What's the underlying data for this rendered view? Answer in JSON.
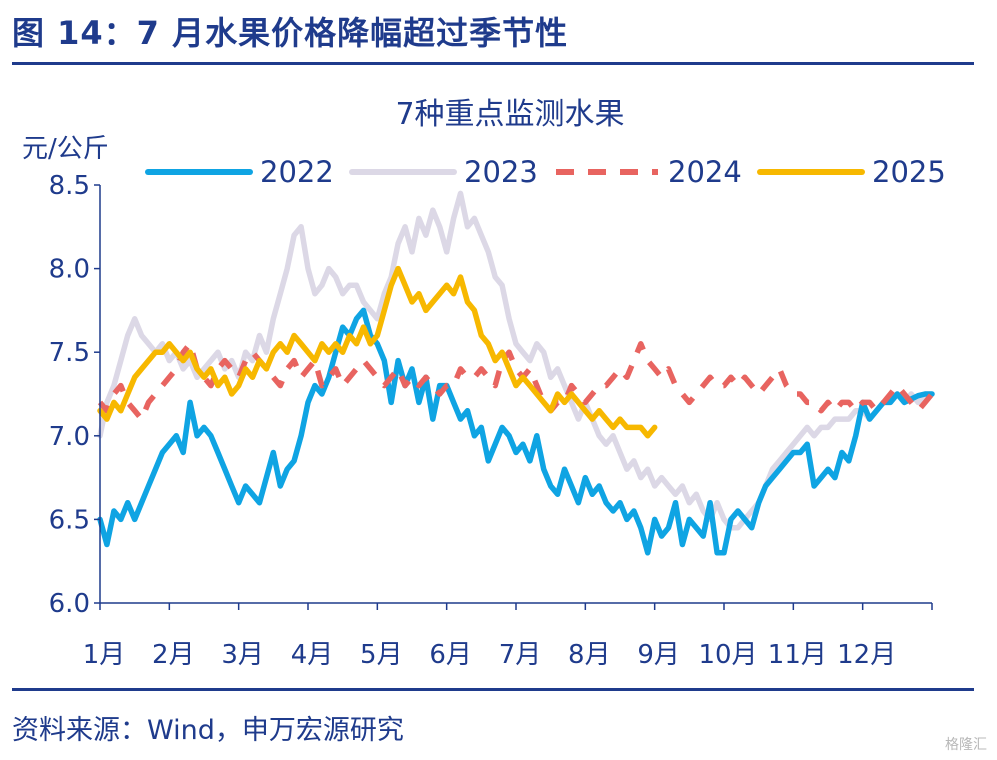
{
  "figure_title": "图 14：7 月水果价格降幅超过季节性",
  "source": "资料来源：Wind，申万宏源研究",
  "watermark": "格隆汇",
  "colors": {
    "2022": "#0fa4e3",
    "2023": "#dcd8e6",
    "2024": "#e86460",
    "2025": "#f7b800",
    "text": "#1f3b8c",
    "axis": "#1f3b8c"
  },
  "chart_data": {
    "type": "line",
    "title": "7种重点监测水果",
    "ylabel": "元/公斤",
    "xlabel": "",
    "ylim": [
      6.0,
      8.5
    ],
    "yticks": [
      6.0,
      6.5,
      7.0,
      7.5,
      8.0,
      8.5
    ],
    "xlim": [
      0,
      12
    ],
    "month_labels": [
      "1月",
      "2月",
      "3月",
      "4月",
      "5月",
      "6月",
      "7月",
      "8月",
      "9月",
      "10月",
      "11月",
      "12月"
    ],
    "grid": false,
    "legend_position": "top",
    "series": [
      {
        "name": "2022",
        "style": "solid",
        "x": [
          0,
          0.1,
          0.2,
          0.3,
          0.4,
          0.5,
          0.6,
          0.7,
          0.8,
          0.9,
          1.0,
          1.1,
          1.2,
          1.3,
          1.4,
          1.5,
          1.6,
          1.7,
          1.8,
          1.9,
          2.0,
          2.1,
          2.2,
          2.3,
          2.4,
          2.5,
          2.6,
          2.7,
          2.8,
          2.9,
          3.0,
          3.1,
          3.2,
          3.3,
          3.4,
          3.5,
          3.6,
          3.7,
          3.8,
          3.9,
          4.0,
          4.1,
          4.2,
          4.3,
          4.4,
          4.5,
          4.6,
          4.7,
          4.8,
          4.9,
          5.0,
          5.1,
          5.2,
          5.3,
          5.4,
          5.5,
          5.6,
          5.7,
          5.8,
          5.9,
          6.0,
          6.1,
          6.2,
          6.3,
          6.4,
          6.5,
          6.6,
          6.7,
          6.8,
          6.9,
          7.0,
          7.1,
          7.2,
          7.3,
          7.4,
          7.5,
          7.6,
          7.7,
          7.8,
          7.9,
          8.0,
          8.1,
          8.2,
          8.3,
          8.4,
          8.5,
          8.6,
          8.7,
          8.8,
          8.9,
          9.0,
          9.1,
          9.2,
          9.3,
          9.4,
          9.5,
          9.6,
          9.7,
          9.8,
          9.9,
          10.0,
          10.1,
          10.2,
          10.3,
          10.4,
          10.5,
          10.6,
          10.7,
          10.8,
          10.9,
          11.0,
          11.1,
          11.2,
          11.3,
          11.4,
          11.5,
          11.6,
          11.7,
          11.8,
          11.9,
          12.0
        ],
        "values": [
          6.5,
          6.35,
          6.55,
          6.5,
          6.6,
          6.5,
          6.6,
          6.7,
          6.8,
          6.9,
          6.95,
          7.0,
          6.9,
          7.2,
          7.0,
          7.05,
          7.0,
          6.9,
          6.8,
          6.7,
          6.6,
          6.7,
          6.65,
          6.6,
          6.75,
          6.9,
          6.7,
          6.8,
          6.85,
          7.0,
          7.2,
          7.3,
          7.25,
          7.35,
          7.5,
          7.65,
          7.6,
          7.7,
          7.75,
          7.6,
          7.55,
          7.45,
          7.2,
          7.45,
          7.3,
          7.4,
          7.2,
          7.35,
          7.1,
          7.3,
          7.3,
          7.2,
          7.1,
          7.15,
          7.0,
          7.05,
          6.85,
          6.95,
          7.05,
          7.0,
          6.9,
          6.95,
          6.85,
          7.0,
          6.8,
          6.7,
          6.65,
          6.8,
          6.7,
          6.6,
          6.75,
          6.65,
          6.7,
          6.6,
          6.55,
          6.6,
          6.5,
          6.55,
          6.45,
          6.3,
          6.5,
          6.4,
          6.45,
          6.6,
          6.35,
          6.5,
          6.45,
          6.4,
          6.6,
          6.3,
          6.3,
          6.5,
          6.55,
          6.5,
          6.45,
          6.6,
          6.7,
          6.75,
          6.8,
          6.85,
          6.9,
          6.9,
          6.95,
          6.7,
          6.75,
          6.8,
          6.75,
          6.9,
          6.85,
          7.0,
          7.2,
          7.1,
          7.15,
          7.2,
          7.2,
          7.25,
          7.2,
          7.22,
          7.24,
          7.25,
          7.25
        ]
      },
      {
        "name": "2023",
        "style": "solid",
        "x": [
          0,
          0.1,
          0.2,
          0.3,
          0.4,
          0.5,
          0.6,
          0.7,
          0.8,
          0.9,
          1.0,
          1.1,
          1.2,
          1.3,
          1.4,
          1.5,
          1.6,
          1.7,
          1.8,
          1.9,
          2.0,
          2.1,
          2.2,
          2.3,
          2.4,
          2.5,
          2.6,
          2.7,
          2.8,
          2.9,
          3.0,
          3.1,
          3.2,
          3.3,
          3.4,
          3.5,
          3.6,
          3.7,
          3.8,
          3.9,
          4.0,
          4.1,
          4.2,
          4.3,
          4.4,
          4.5,
          4.6,
          4.7,
          4.8,
          4.9,
          5.0,
          5.1,
          5.2,
          5.3,
          5.4,
          5.5,
          5.6,
          5.7,
          5.8,
          5.9,
          6.0,
          6.1,
          6.2,
          6.3,
          6.4,
          6.5,
          6.6,
          6.7,
          6.8,
          6.9,
          7.0,
          7.1,
          7.2,
          7.3,
          7.4,
          7.5,
          7.6,
          7.7,
          7.8,
          7.9,
          8.0,
          8.1,
          8.2,
          8.3,
          8.4,
          8.5,
          8.6,
          8.7,
          8.8,
          8.9,
          9.0,
          9.1,
          9.2,
          9.3,
          9.4,
          9.5,
          9.6,
          9.7,
          9.8,
          9.9,
          10.0,
          10.1,
          10.2,
          10.3,
          10.4,
          10.5,
          10.6,
          10.7,
          10.8,
          10.9,
          11.0,
          11.1,
          11.2,
          11.3,
          11.4,
          11.5,
          11.6,
          11.7,
          11.8,
          11.9,
          12.0
        ],
        "values": [
          7.0,
          7.2,
          7.3,
          7.45,
          7.6,
          7.7,
          7.6,
          7.55,
          7.5,
          7.55,
          7.45,
          7.5,
          7.4,
          7.45,
          7.35,
          7.4,
          7.45,
          7.5,
          7.4,
          7.45,
          7.35,
          7.5,
          7.45,
          7.6,
          7.5,
          7.7,
          7.85,
          8.0,
          8.2,
          8.25,
          8.0,
          7.85,
          7.9,
          8.0,
          7.95,
          7.85,
          7.9,
          7.9,
          7.8,
          7.75,
          7.7,
          7.85,
          7.95,
          8.15,
          8.25,
          8.1,
          8.3,
          8.2,
          8.35,
          8.25,
          8.1,
          8.3,
          8.45,
          8.25,
          8.3,
          8.2,
          8.1,
          7.95,
          7.9,
          7.7,
          7.55,
          7.5,
          7.45,
          7.55,
          7.5,
          7.35,
          7.4,
          7.3,
          7.2,
          7.1,
          7.2,
          7.1,
          7.0,
          6.95,
          7.0,
          6.9,
          6.8,
          6.85,
          6.75,
          6.8,
          6.7,
          6.75,
          6.7,
          6.65,
          6.7,
          6.6,
          6.65,
          6.55,
          6.5,
          6.6,
          6.5,
          6.45,
          6.45,
          6.5,
          6.55,
          6.6,
          6.7,
          6.8,
          6.85,
          6.9,
          6.95,
          7.0,
          7.05,
          7.0,
          7.05,
          7.05,
          7.1,
          7.1,
          7.1,
          7.15,
          7.15,
          7.1,
          7.15,
          7.2,
          7.2,
          7.25,
          7.2,
          7.25,
          7.2,
          7.25,
          7.25
        ]
      },
      {
        "name": "2024",
        "style": "dashed",
        "x": [
          0,
          0.1,
          0.2,
          0.3,
          0.4,
          0.5,
          0.6,
          0.7,
          0.8,
          0.9,
          1.0,
          1.1,
          1.2,
          1.3,
          1.4,
          1.5,
          1.6,
          1.7,
          1.8,
          1.9,
          2.0,
          2.1,
          2.2,
          2.3,
          2.4,
          2.5,
          2.6,
          2.7,
          2.8,
          2.9,
          3.0,
          3.1,
          3.2,
          3.3,
          3.4,
          3.5,
          3.6,
          3.7,
          3.8,
          3.9,
          4.0,
          4.1,
          4.2,
          4.3,
          4.4,
          4.5,
          4.6,
          4.7,
          4.8,
          4.9,
          5.0,
          5.1,
          5.2,
          5.3,
          5.4,
          5.5,
          5.6,
          5.7,
          5.8,
          5.9,
          6.0,
          6.1,
          6.2,
          6.3,
          6.4,
          6.5,
          6.6,
          6.7,
          6.8,
          6.9,
          7.0,
          7.1,
          7.2,
          7.3,
          7.4,
          7.5,
          7.6,
          7.7,
          7.8,
          7.9,
          8.0,
          8.1,
          8.2,
          8.3,
          8.4,
          8.5,
          8.6,
          8.7,
          8.8,
          8.9,
          9.0,
          9.1,
          9.2,
          9.3,
          9.4,
          9.5,
          9.6,
          9.7,
          9.8,
          9.9,
          10.0,
          10.1,
          10.2,
          10.3,
          10.4,
          10.5,
          10.6,
          10.7,
          10.8,
          10.9,
          11.0,
          11.1,
          11.2,
          11.3,
          11.4,
          11.5,
          11.6,
          11.7,
          11.8,
          11.9,
          12.0
        ],
        "values": [
          7.2,
          7.15,
          7.25,
          7.3,
          7.2,
          7.15,
          7.1,
          7.2,
          7.25,
          7.3,
          7.35,
          7.4,
          7.5,
          7.55,
          7.4,
          7.35,
          7.3,
          7.4,
          7.45,
          7.4,
          7.35,
          7.45,
          7.5,
          7.45,
          7.4,
          7.35,
          7.3,
          7.4,
          7.45,
          7.35,
          7.4,
          7.45,
          7.3,
          7.35,
          7.4,
          7.3,
          7.35,
          7.4,
          7.45,
          7.4,
          7.35,
          7.3,
          7.35,
          7.4,
          7.3,
          7.35,
          7.3,
          7.35,
          7.3,
          7.25,
          7.3,
          7.3,
          7.4,
          7.35,
          7.35,
          7.4,
          7.35,
          7.3,
          7.45,
          7.5,
          7.4,
          7.35,
          7.4,
          7.3,
          7.2,
          7.15,
          7.2,
          7.2,
          7.3,
          7.25,
          7.2,
          7.25,
          7.3,
          7.3,
          7.35,
          7.4,
          7.35,
          7.45,
          7.55,
          7.45,
          7.4,
          7.35,
          7.4,
          7.3,
          7.25,
          7.2,
          7.25,
          7.3,
          7.35,
          7.3,
          7.3,
          7.35,
          7.3,
          7.35,
          7.3,
          7.25,
          7.3,
          7.35,
          7.4,
          7.3,
          7.25,
          7.25,
          7.2,
          7.2,
          7.15,
          7.2,
          7.15,
          7.2,
          7.2,
          7.15,
          7.2,
          7.2,
          7.15,
          7.2,
          7.25,
          7.3,
          7.25,
          7.2,
          7.15,
          7.2,
          7.25
        ]
      },
      {
        "name": "2025",
        "style": "solid",
        "x": [
          0,
          0.1,
          0.2,
          0.3,
          0.4,
          0.5,
          0.6,
          0.7,
          0.8,
          0.9,
          1.0,
          1.1,
          1.2,
          1.3,
          1.4,
          1.5,
          1.6,
          1.7,
          1.8,
          1.9,
          2.0,
          2.1,
          2.2,
          2.3,
          2.4,
          2.5,
          2.6,
          2.7,
          2.8,
          2.9,
          3.0,
          3.1,
          3.2,
          3.3,
          3.4,
          3.5,
          3.6,
          3.7,
          3.8,
          3.9,
          4.0,
          4.1,
          4.2,
          4.3,
          4.4,
          4.5,
          4.6,
          4.7,
          4.8,
          4.9,
          5.0,
          5.1,
          5.2,
          5.3,
          5.4,
          5.5,
          5.6,
          5.7,
          5.8,
          5.9,
          6.0,
          6.1,
          6.2,
          6.3,
          6.4,
          6.5,
          6.6,
          6.7,
          6.8,
          6.9,
          7.0,
          7.1,
          7.2,
          7.3,
          7.4,
          7.5,
          7.6,
          7.7,
          7.8,
          7.9,
          8.0
        ],
        "values": [
          7.15,
          7.1,
          7.2,
          7.15,
          7.25,
          7.35,
          7.4,
          7.45,
          7.5,
          7.5,
          7.55,
          7.5,
          7.45,
          7.5,
          7.4,
          7.35,
          7.4,
          7.3,
          7.35,
          7.25,
          7.3,
          7.4,
          7.35,
          7.45,
          7.4,
          7.5,
          7.55,
          7.5,
          7.6,
          7.55,
          7.5,
          7.45,
          7.55,
          7.5,
          7.55,
          7.5,
          7.6,
          7.55,
          7.65,
          7.55,
          7.6,
          7.75,
          7.9,
          8.0,
          7.9,
          7.8,
          7.85,
          7.75,
          7.8,
          7.85,
          7.9,
          7.85,
          7.95,
          7.8,
          7.75,
          7.6,
          7.55,
          7.45,
          7.5,
          7.4,
          7.3,
          7.35,
          7.3,
          7.25,
          7.2,
          7.15,
          7.25,
          7.2,
          7.25,
          7.2,
          7.15,
          7.1,
          7.15,
          7.1,
          7.05,
          7.1,
          7.05,
          7.05,
          7.05,
          7.0,
          7.05
        ]
      }
    ]
  }
}
